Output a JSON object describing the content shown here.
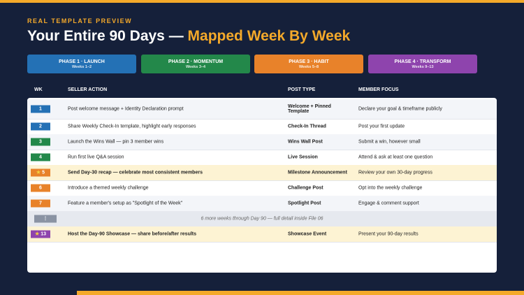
{
  "header": {
    "eyebrow": "REAL TEMPLATE PREVIEW",
    "title_start": "Your Entire 90 Days — ",
    "title_highlight": "Mapped Week By Week"
  },
  "phases": [
    {
      "name": "PHASE 1 · LAUNCH",
      "weeks": "Weeks 1–2",
      "color": "#2471b5"
    },
    {
      "name": "PHASE 2 · MOMENTUM",
      "weeks": "Weeks 3–4",
      "color": "#23884a"
    },
    {
      "name": "PHASE 3 · HABIT",
      "weeks": "Weeks 5–8",
      "color": "#e8822a"
    },
    {
      "name": "PHASE 4 · TRANSFORM",
      "weeks": "Weeks 9–13",
      "color": "#8e44ad"
    }
  ],
  "table": {
    "columns": [
      "WK",
      "SELLER ACTION",
      "POST TYPE",
      "MEMBER FOCUS"
    ],
    "rows": [
      {
        "week": "1",
        "phase": 0,
        "action": "Post welcome message + Identity Declaration prompt",
        "post_type": "Welcome + Pinned Template",
        "focus": "Declare your goal & timeframe publicly"
      },
      {
        "week": "2",
        "phase": 0,
        "action": "Share Weekly Check-In template, highlight early responses",
        "post_type": "Check-In Thread",
        "focus": "Post your first update"
      },
      {
        "week": "3",
        "phase": 1,
        "action": "Launch the Wins Wall — pin 3 member wins",
        "post_type": "Wins Wall Post",
        "focus": "Submit a win, however small"
      },
      {
        "week": "4",
        "phase": 1,
        "action": "Run first live Q&A session",
        "post_type": "Live Session",
        "focus": "Attend & ask at least one question"
      },
      {
        "week": "5",
        "phase": 2,
        "milestone": true,
        "action": "Send Day-30 recap — celebrate most consistent members",
        "post_type": "Milestone Announcement",
        "focus": "Review your own 30-day progress"
      },
      {
        "week": "6",
        "phase": 2,
        "action": "Introduce a themed weekly challenge",
        "post_type": "Challenge Post",
        "focus": "Opt into the weekly challenge"
      },
      {
        "week": "7",
        "phase": 2,
        "action": "Feature a member's setup as \"Spotlight of the Week\"",
        "post_type": "Spotlight Post",
        "focus": "Engage & comment support"
      },
      {
        "week": "⋮",
        "note": "6 more weeks through Day 90 — full detail inside File 06"
      },
      {
        "week": "13",
        "phase": 3,
        "milestone": true,
        "action": "Host the Day-90 Showcase — share before/after results",
        "post_type": "Showcase Event",
        "focus": "Present your 90-day results"
      }
    ]
  }
}
